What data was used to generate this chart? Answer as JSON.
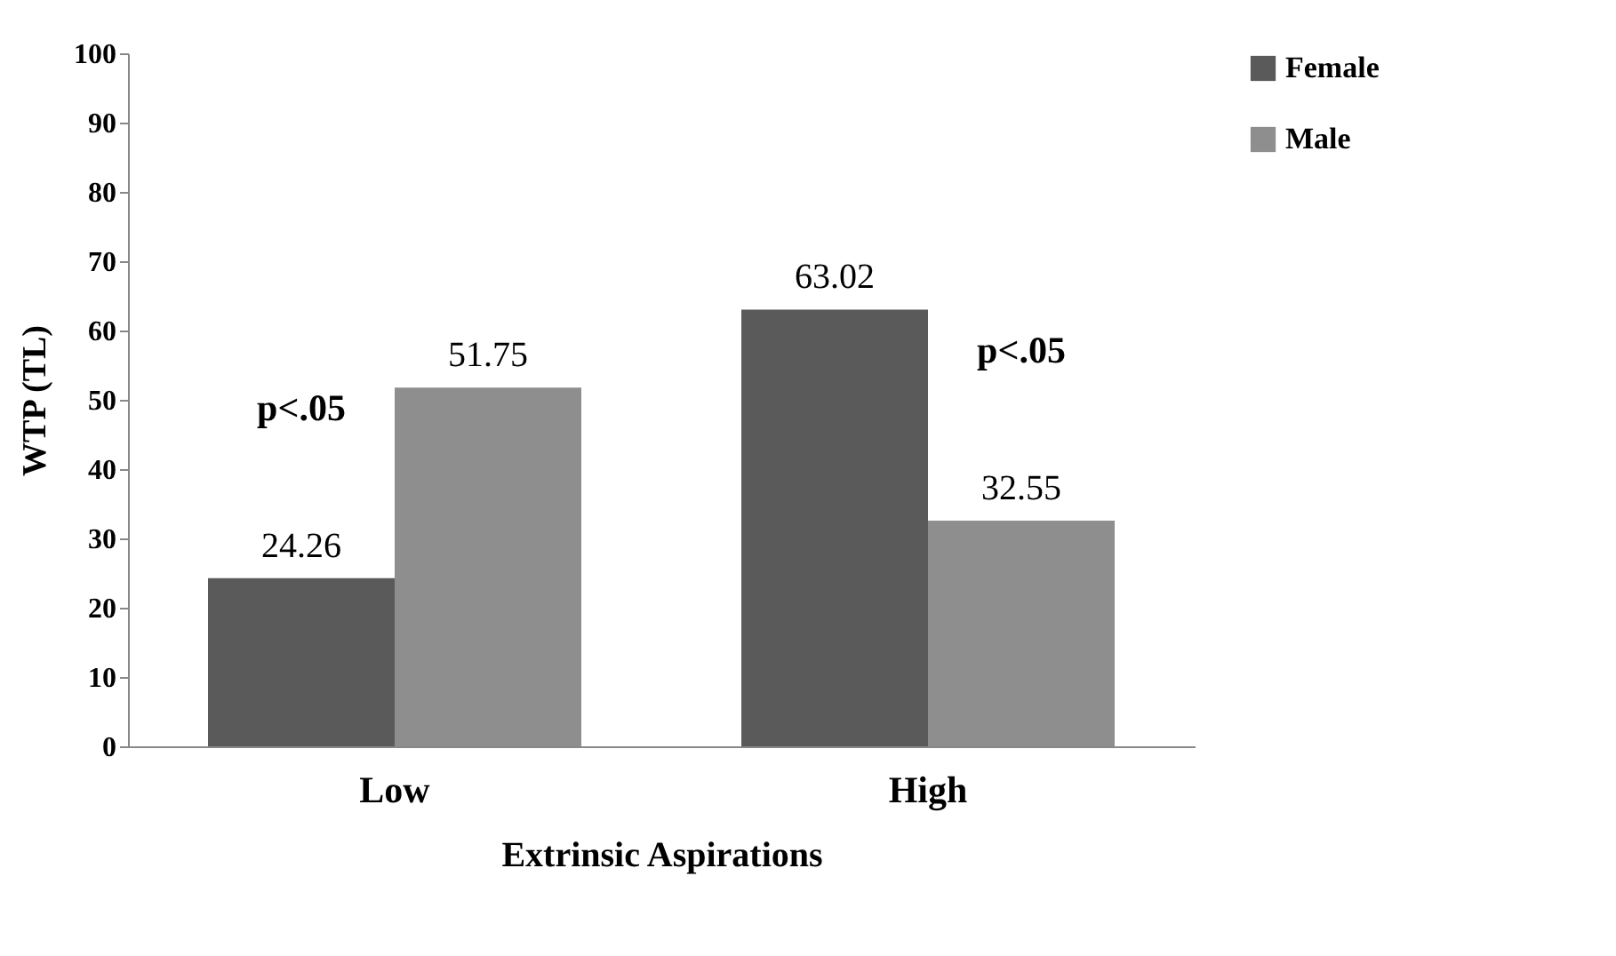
{
  "chart_data": {
    "type": "bar",
    "xlabel": "Extrinsic Aspirations",
    "ylabel": "WTP (TL)",
    "categories": [
      "Low",
      "High"
    ],
    "series": [
      {
        "name": "Female",
        "color": "#5a5a5a",
        "values": [
          24.26,
          63.02
        ]
      },
      {
        "name": "Male",
        "color": "#8e8e8e",
        "values": [
          51.75,
          32.55
        ]
      }
    ],
    "ylim": [
      0,
      100
    ],
    "yticks": [
      0,
      10,
      20,
      30,
      40,
      50,
      60,
      70,
      80,
      90,
      100
    ],
    "grid": false,
    "legend": "right",
    "data_labels": true,
    "annotations": [
      "p<.05",
      "p<.05"
    ]
  }
}
